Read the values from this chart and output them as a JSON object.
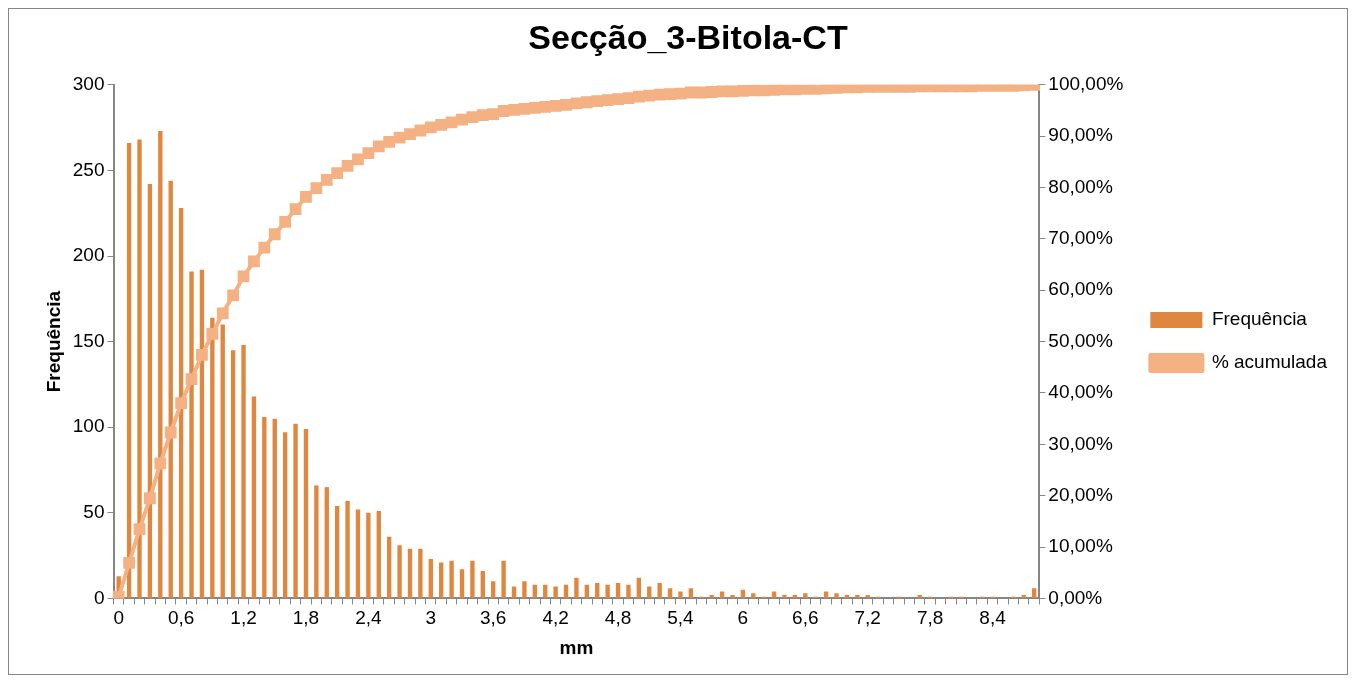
{
  "chart_data": {
    "type": "bar",
    "title": "Secção_3-Bitola-CT",
    "xlabel": "mm",
    "ylabel": "Frequência",
    "categories": [
      "0",
      null,
      null,
      null,
      null,
      null,
      "0,6",
      null,
      null,
      null,
      null,
      null,
      "1,2",
      null,
      null,
      null,
      null,
      null,
      "1,8",
      null,
      null,
      null,
      null,
      null,
      "2,4",
      null,
      null,
      null,
      null,
      null,
      "3",
      null,
      null,
      null,
      null,
      null,
      "3,6",
      null,
      null,
      null,
      null,
      null,
      "4,2",
      null,
      null,
      null,
      null,
      null,
      "4,8",
      null,
      null,
      null,
      null,
      null,
      "5,4",
      null,
      null,
      null,
      null,
      null,
      "6",
      null,
      null,
      null,
      null,
      null,
      "6,6",
      null,
      null,
      null,
      null,
      null,
      "7,2",
      null,
      null,
      null,
      null,
      null,
      "7,8",
      null,
      null,
      null,
      null,
      null,
      "8,4",
      null,
      null,
      null,
      null
    ],
    "series": [
      {
        "name": "Frequência",
        "color": "#e0873f",
        "values": [
          13,
          266,
          268,
          242,
          273,
          244,
          228,
          191,
          192,
          164,
          160,
          145,
          148,
          118,
          106,
          105,
          97,
          102,
          99,
          66,
          65,
          54,
          57,
          52,
          50,
          51,
          36,
          31,
          29,
          29,
          23,
          21,
          22,
          17,
          22,
          16,
          10,
          22,
          7,
          10,
          8,
          8,
          7,
          8,
          12,
          8,
          9,
          8,
          9,
          8,
          12,
          7,
          9,
          6,
          4,
          6,
          1,
          2,
          4,
          2,
          5,
          3,
          1,
          4,
          2,
          2,
          3,
          1,
          4,
          3,
          2,
          2,
          2,
          1,
          0,
          1,
          0,
          2,
          1,
          0,
          1,
          1,
          0,
          1,
          1,
          0,
          1,
          2,
          6
        ]
      },
      {
        "name": "% acumulada",
        "type": "line",
        "axis": "y2",
        "marker": "square",
        "color": "#f4b183",
        "values": [
          0.3,
          6.9,
          13.5,
          19.5,
          26.3,
          32.3,
          38.0,
          42.7,
          47.4,
          51.5,
          55.5,
          59.0,
          62.7,
          65.6,
          68.3,
          70.9,
          73.3,
          75.8,
          78.2,
          79.9,
          81.5,
          82.8,
          84.2,
          85.5,
          86.7,
          88.0,
          88.9,
          89.7,
          90.4,
          91.1,
          91.7,
          92.2,
          92.7,
          93.2,
          93.7,
          94.1,
          94.3,
          94.9,
          95.1,
          95.3,
          95.5,
          95.7,
          95.9,
          96.1,
          96.4,
          96.6,
          96.8,
          97.0,
          97.2,
          97.4,
          97.7,
          97.9,
          98.1,
          98.2,
          98.3,
          98.5,
          98.5,
          98.6,
          98.7,
          98.7,
          98.8,
          98.9,
          98.9,
          99.0,
          99.1,
          99.1,
          99.2,
          99.2,
          99.3,
          99.4,
          99.5,
          99.5,
          99.6,
          99.6,
          99.6,
          99.6,
          99.6,
          99.7,
          99.7,
          99.7,
          99.7,
          99.7,
          99.7,
          99.8,
          99.8,
          99.8,
          99.8,
          99.9,
          100
        ]
      }
    ],
    "ylim": [
      0,
      300
    ],
    "yticks": [
      0,
      50,
      100,
      150,
      200,
      250,
      300
    ],
    "y2lim": [
      0,
      100
    ],
    "y2ticks": [
      {
        "value": 0,
        "label": "0,00%"
      },
      {
        "value": 10,
        "label": "10,00%"
      },
      {
        "value": 20,
        "label": "20,00%"
      },
      {
        "value": 30,
        "label": "30,00%"
      },
      {
        "value": 40,
        "label": "40,00%"
      },
      {
        "value": 50,
        "label": "50,00%"
      },
      {
        "value": 60,
        "label": "60,00%"
      },
      {
        "value": 70,
        "label": "70,00%"
      },
      {
        "value": 80,
        "label": "80,00%"
      },
      {
        "value": 90,
        "label": "90,00%"
      },
      {
        "value": 100,
        "label": "100,00%"
      }
    ],
    "legend": "right"
  }
}
